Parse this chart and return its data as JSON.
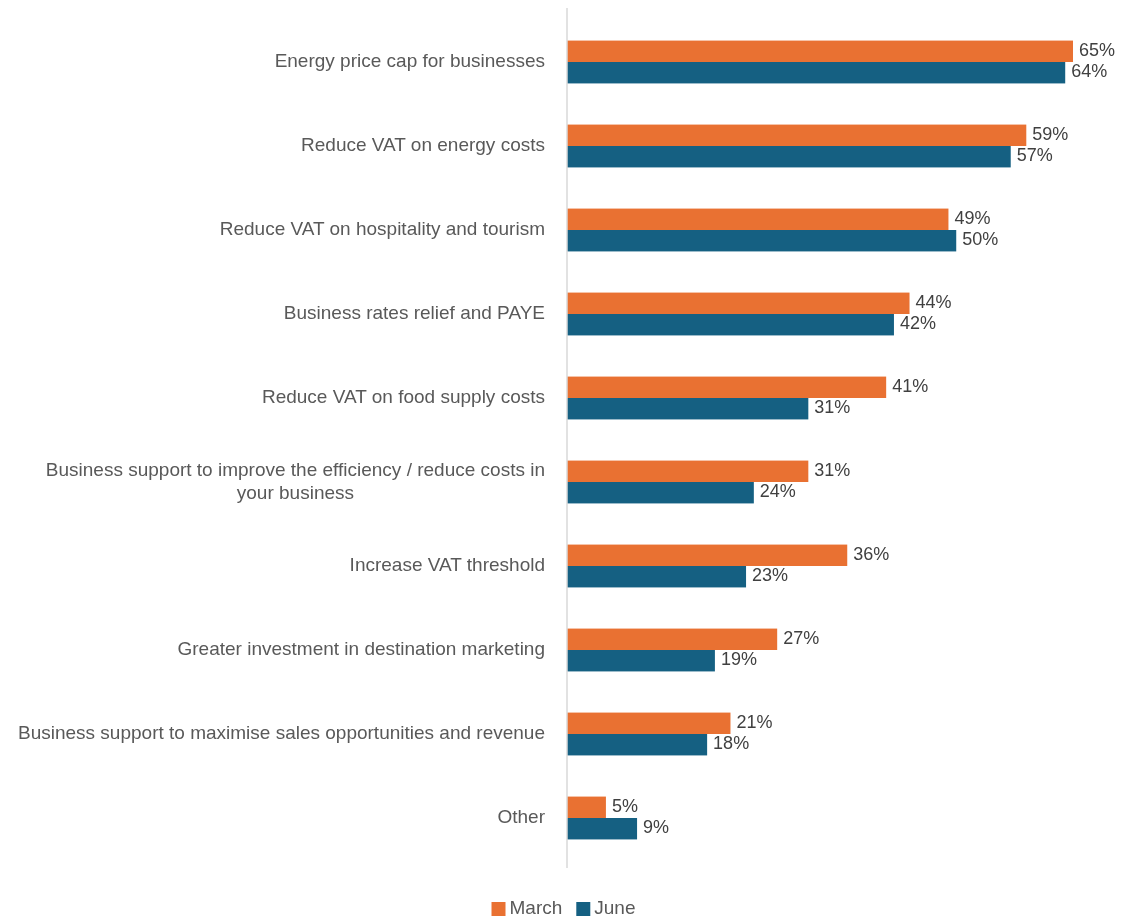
{
  "chart_data": {
    "type": "bar",
    "orientation": "horizontal",
    "legend": "bottom",
    "categories": [
      "Energy price cap for businesses",
      "Reduce VAT on energy costs",
      "Reduce VAT on hospitality and tourism",
      "Business rates relief and PAYE",
      "Reduce VAT on food supply costs",
      "Business support to improve the efficiency / reduce costs in your business",
      "Increase VAT threshold",
      "Greater investment in destination marketing",
      "Business support to maximise sales opportunities and revenue",
      "Other"
    ],
    "series": [
      {
        "name": "March",
        "color": "#e97132",
        "values": [
          65,
          59,
          49,
          44,
          41,
          31,
          36,
          27,
          21,
          5
        ],
        "value_labels": [
          "65%",
          "59%",
          "49%",
          "44%",
          "41%",
          "31%",
          "36%",
          "27%",
          "21%",
          "5%"
        ]
      },
      {
        "name": "June",
        "color": "#156082",
        "values": [
          64,
          57,
          50,
          42,
          31,
          24,
          23,
          19,
          18,
          9
        ],
        "value_labels": [
          "64%",
          "57%",
          "50%",
          "42%",
          "31%",
          "24%",
          "23%",
          "19%",
          "18%",
          "9%"
        ]
      }
    ]
  }
}
